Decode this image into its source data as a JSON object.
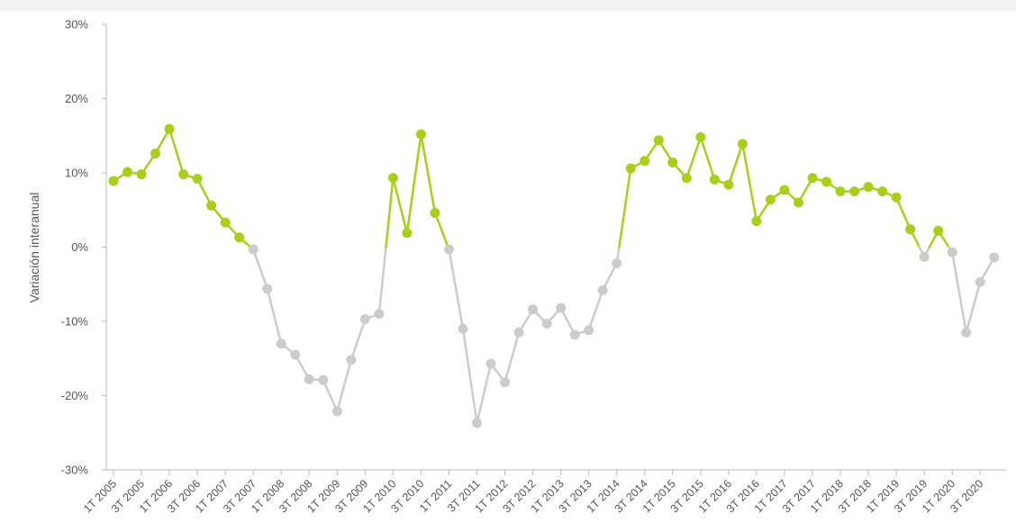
{
  "chart_data": {
    "type": "line",
    "xlabel": "",
    "ylabel": "Variación interanual",
    "ylim": [
      -30,
      30
    ],
    "y_ticks": [
      "30%",
      "20%",
      "10%",
      "0%",
      "-10%",
      "-20%",
      "-30%"
    ],
    "x_ticks": [
      "1T 2005",
      "3T 2005",
      "1T 2006",
      "3T 2006",
      "1T 2007",
      "3T 2007",
      "1T 2008",
      "3T 2008",
      "1T 2009",
      "3T 2009",
      "1T 2010",
      "3T 2010",
      "1T 2011",
      "3T 2011",
      "1T 2012",
      "3T 2012",
      "1T 2013",
      "3T 2013",
      "1T 2014",
      "3T 2014",
      "1T 2015",
      "3T 2015",
      "1T 2016",
      "3T 2016",
      "1T 2017",
      "3T 2017",
      "1T 2018",
      "3T 2018",
      "1T 2019",
      "3T 2019",
      "1T 2020",
      "3T 2020"
    ],
    "x_ticks_per_quarter_step": 2,
    "values": [
      8.9,
      10.1,
      9.8,
      12.6,
      15.9,
      9.8,
      9.2,
      5.6,
      3.3,
      1.3,
      -0.3,
      -5.6,
      -13.0,
      -14.5,
      -17.8,
      -17.9,
      -22.1,
      -15.2,
      -9.7,
      -9.0,
      9.3,
      1.9,
      15.2,
      4.6,
      -0.3,
      -11.0,
      -23.7,
      -15.7,
      -18.2,
      -11.5,
      -8.4,
      -10.3,
      -8.2,
      -11.8,
      -11.2,
      -5.8,
      -2.2,
      10.6,
      11.6,
      14.4,
      11.4,
      9.3,
      14.8,
      9.1,
      8.4,
      13.9,
      3.5,
      6.4,
      7.7,
      6.0,
      9.3,
      8.8,
      7.5,
      7.5,
      8.1,
      7.5,
      6.7,
      2.4,
      -1.3,
      2.2,
      -0.7,
      -11.5,
      -4.7,
      -1.4
    ],
    "colors": {
      "positive": "#a8cf1a",
      "negative": "#cccccc",
      "axis": "#bbbbbb",
      "text": "#555555"
    },
    "grid": false
  }
}
